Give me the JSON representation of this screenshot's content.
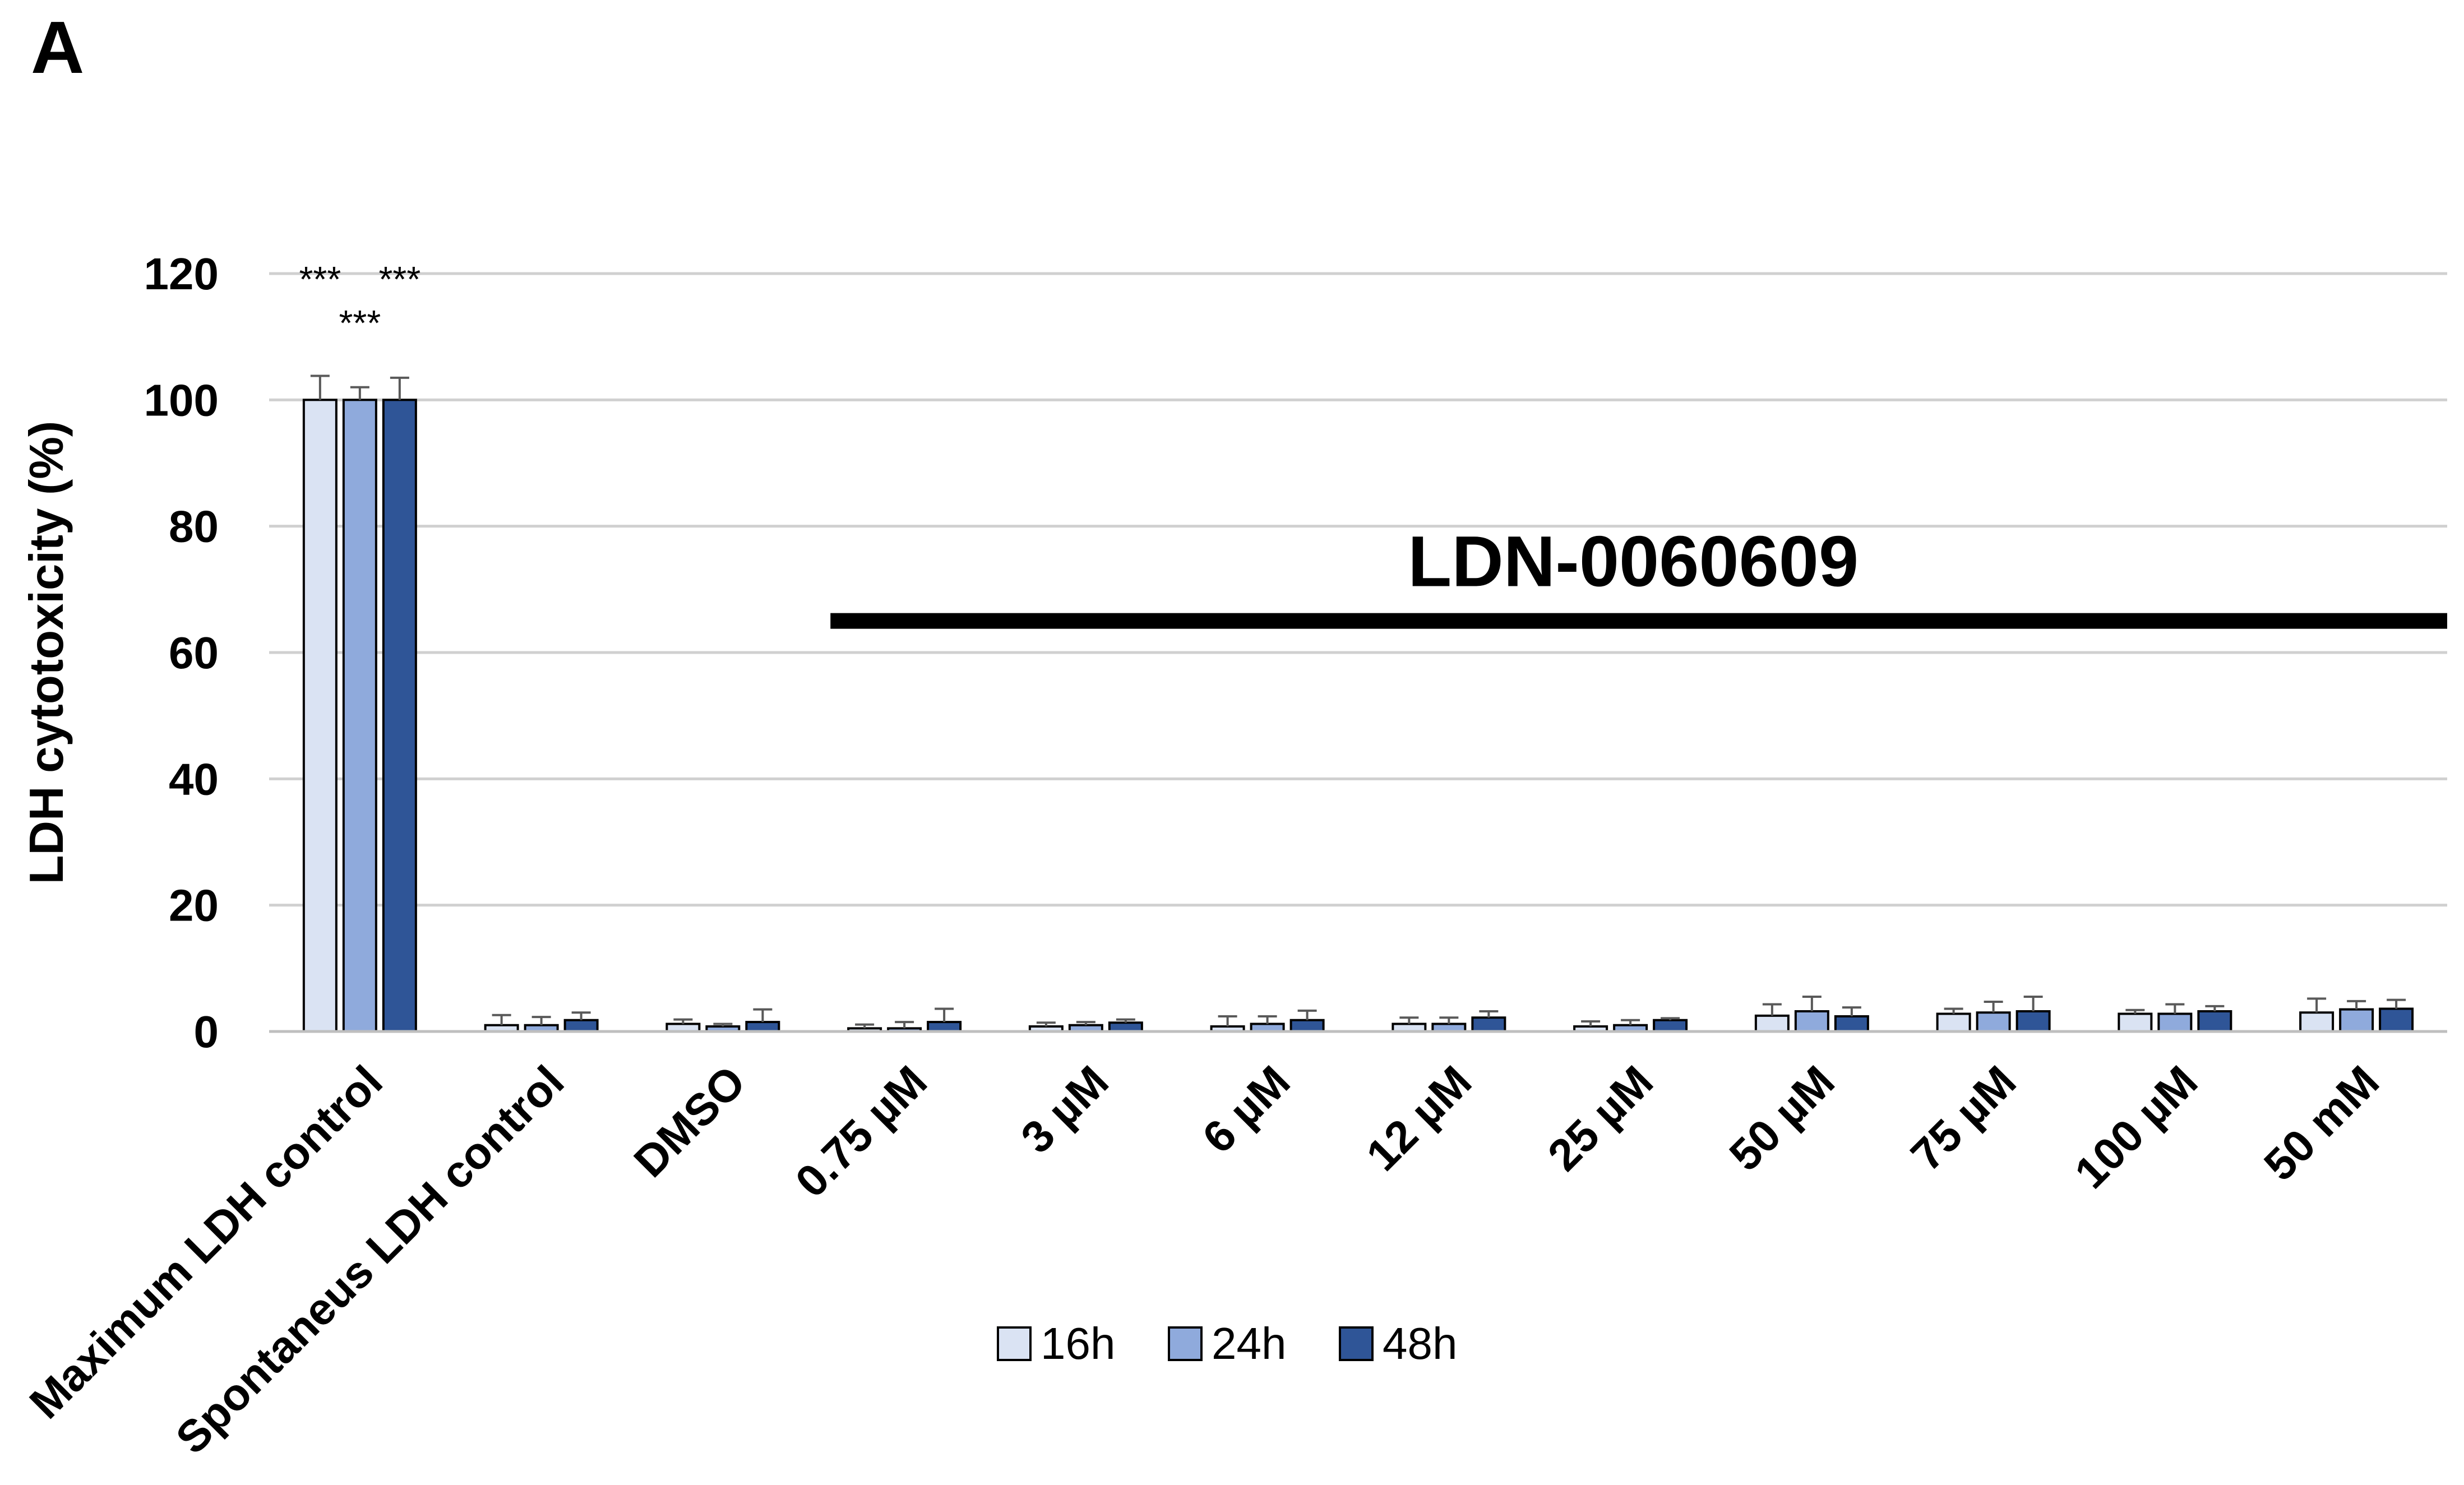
{
  "panel_label": "A",
  "chart_data": {
    "type": "bar",
    "title": "",
    "ylabel": "LDH cytotoxicity (%)",
    "xlabel": "",
    "ylim": [
      0,
      120
    ],
    "yticks": [
      "0",
      "20",
      "40",
      "60",
      "80",
      "100",
      "120"
    ],
    "grid": true,
    "legend_position": "bottom",
    "categories": [
      "Maximum LDH control",
      "Spontaneus LDH control",
      "DMSO",
      "0.75 µM",
      "3 µM",
      "6 µM",
      "12 µM",
      "25 µM",
      "50 µM",
      "75 µM",
      "100 µM",
      "50 mM"
    ],
    "series": [
      {
        "name": "16h",
        "color": "#dae3f3",
        "values": [
          100,
          1.0,
          1.2,
          0.5,
          0.8,
          0.8,
          1.2,
          0.8,
          2.5,
          2.8,
          2.8,
          3.0
        ],
        "errors": [
          3.8,
          1.6,
          0.7,
          0.6,
          0.6,
          1.6,
          1.0,
          0.8,
          1.8,
          0.8,
          0.6,
          2.2
        ]
      },
      {
        "name": "24h",
        "color": "#8faadc",
        "values": [
          100,
          1.0,
          0.8,
          0.5,
          1.0,
          1.2,
          1.2,
          1.0,
          3.2,
          3.0,
          2.8,
          3.5
        ],
        "errors": [
          2.0,
          1.3,
          0.4,
          1.0,
          0.5,
          1.2,
          1.0,
          0.8,
          2.3,
          1.7,
          1.5,
          1.3
        ]
      },
      {
        "name": "48h",
        "color": "#2f5597",
        "values": [
          100,
          1.8,
          1.5,
          1.5,
          1.4,
          1.8,
          2.2,
          1.8,
          2.4,
          3.2,
          3.2,
          3.6
        ],
        "errors": [
          3.5,
          1.2,
          2.0,
          2.1,
          0.5,
          1.5,
          1.0,
          0.3,
          1.4,
          2.3,
          0.8,
          1.4
        ]
      }
    ],
    "significance": [
      {
        "category": 0,
        "series": 0,
        "label": "***",
        "row": 0
      },
      {
        "category": 0,
        "series": 1,
        "label": "***",
        "row": 1
      },
      {
        "category": 0,
        "series": 2,
        "label": "***",
        "row": 0
      }
    ],
    "annotation": {
      "label": "LDN-0060609",
      "from_category": 3,
      "to_category": 11
    }
  }
}
